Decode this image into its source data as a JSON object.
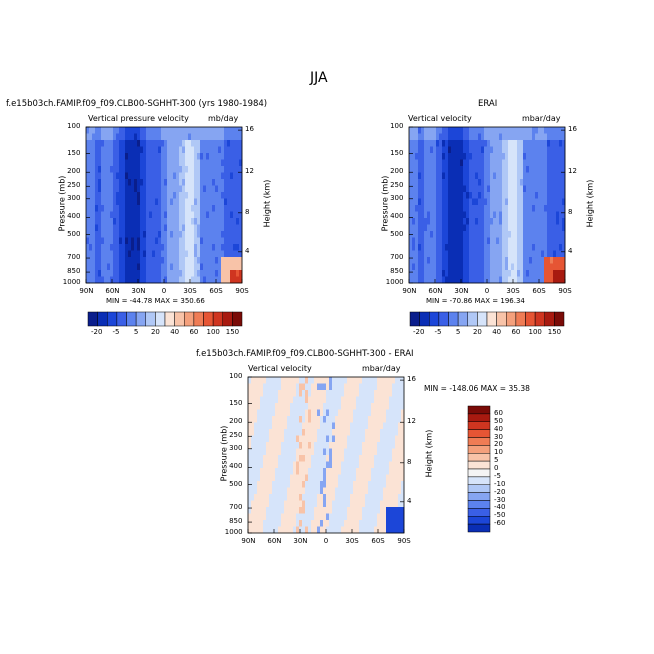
{
  "figure": {
    "title": "JJA"
  },
  "panels": [
    {
      "case_title": "f.e15b03ch.FAMIP.f09_f09.CLB00-SGHHT-300 (yrs 1980-1984)",
      "left_label": "Vertical pressure velocity",
      "right_label": "mb/day",
      "minmax": "MIN = -44.78   MAX = 350.66",
      "palette": "b"
    },
    {
      "case_title": "ERAI",
      "left_label": "Vertical velocity",
      "right_label": "mbar/day",
      "minmax": "MIN = -70.86   MAX = 196.34",
      "palette": "b"
    },
    {
      "case_title": "f.e15b03ch.FAMIP.f09_f09.CLB00-SGHHT-300 - ERAI",
      "left_label": "Vertical velocity",
      "right_label": "mbar/day",
      "minmax": "MIN = -148.06   MAX =  35.38",
      "palette": "d"
    }
  ],
  "axes": {
    "ylabel_left": "Pressure (mb)",
    "ylabel_right": "Height (km)",
    "pressure_ticks": [
      "100",
      "150",
      "200",
      "250",
      "300",
      "400",
      "500",
      "700",
      "850",
      "1000"
    ],
    "height_ticks": [
      "16",
      "12",
      "8",
      "4"
    ],
    "lat_ticks": [
      "90N",
      "60N",
      "30N",
      "0",
      "30S",
      "60S",
      "90S"
    ]
  },
  "colorbars": {
    "horizontal_labels": [
      "-20",
      "-5",
      "5",
      "20",
      "40",
      "60",
      "100",
      "150"
    ],
    "vertical_labels": [
      "60",
      "50",
      "40",
      "30",
      "20",
      "10",
      "5",
      "0",
      "-5",
      "-10",
      "-20",
      "-30",
      "-40",
      "-50",
      "-60"
    ],
    "base_colors": [
      "#0a1e8c",
      "#0a2eb5",
      "#1c46d8",
      "#3a5fe6",
      "#5c82ee",
      "#86a5f2",
      "#b0c8f6",
      "#d6e4fa",
      "#fbe3d5",
      "#f8c3a8",
      "#f4a07c",
      "#ef7c55",
      "#e65534",
      "#cf3520",
      "#a81a10",
      "#7a0b07"
    ],
    "diff_colors": [
      "#7a0b07",
      "#a81a10",
      "#cf3520",
      "#e65534",
      "#ef7c55",
      "#f4a07c",
      "#f8c3a8",
      "#fbe3d5",
      "#f4f4f4",
      "#d6e4fa",
      "#b0c8f6",
      "#86a5f2",
      "#5c82ee",
      "#3a5fe6",
      "#1c46d8",
      "#0a2eb5"
    ]
  }
}
